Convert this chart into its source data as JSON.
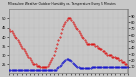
{
  "title": "Milwaukee Weather Outdoor Humidity vs. Temperature Every 5 Minutes",
  "temp_color": "#dd0000",
  "humidity_color": "#0000cc",
  "background_color": "#c8c8c8",
  "temp_ylim": [
    20,
    55
  ],
  "humidity_ylim": [
    0,
    100
  ],
  "n_points": 100,
  "temp_yticks": [
    25,
    30,
    35,
    40,
    45,
    50
  ],
  "humidity_yticks": [
    10,
    20,
    30,
    40,
    50,
    60,
    70,
    80,
    90
  ],
  "temp_data": [
    44,
    43,
    43,
    42,
    41,
    40,
    39,
    38,
    37,
    36,
    35,
    34,
    33,
    32,
    31,
    30,
    29,
    28,
    27,
    26,
    25,
    25,
    25,
    24,
    24,
    24,
    23,
    23,
    23,
    23,
    23,
    23,
    24,
    25,
    26,
    27,
    28,
    30,
    32,
    34,
    36,
    38,
    40,
    42,
    44,
    46,
    47,
    48,
    49,
    50,
    50,
    50,
    49,
    48,
    47,
    46,
    45,
    44,
    43,
    42,
    41,
    40,
    39,
    38,
    37,
    36,
    36,
    36,
    36,
    36,
    36,
    36,
    35,
    35,
    34,
    34,
    33,
    33,
    32,
    32,
    31,
    31,
    30,
    30,
    30,
    30,
    29,
    29,
    29,
    28,
    28,
    28,
    27,
    27,
    26,
    26,
    26,
    25,
    25,
    24
  ],
  "humidity_data": [
    5,
    5,
    5,
    5,
    5,
    5,
    5,
    5,
    5,
    5,
    5,
    5,
    5,
    5,
    5,
    5,
    5,
    5,
    5,
    5,
    5,
    5,
    5,
    5,
    5,
    5,
    5,
    5,
    5,
    5,
    5,
    5,
    5,
    5,
    5,
    5,
    5,
    5,
    5,
    5,
    8,
    9,
    11,
    13,
    15,
    17,
    19,
    21,
    22,
    22,
    21,
    20,
    18,
    16,
    14,
    12,
    11,
    10,
    9,
    8,
    7,
    7,
    7,
    7,
    7,
    8,
    8,
    8,
    8,
    9,
    9,
    9,
    9,
    9,
    9,
    9,
    10,
    10,
    10,
    10,
    10,
    10,
    10,
    10,
    10,
    10,
    10,
    10,
    10,
    10,
    10,
    10,
    10,
    10,
    10,
    10,
    10,
    10,
    10,
    10
  ]
}
